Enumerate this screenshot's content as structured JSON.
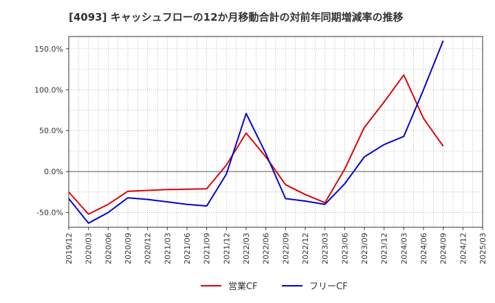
{
  "chart_data": {
    "type": "line",
    "title": "[4093]  キャッシュフローの12か月移動合計の対前年同期増減率の推移",
    "xlabel": "",
    "ylabel": "",
    "ylim": [
      -68,
      165
    ],
    "y_ticks": [
      {
        "value": 150,
        "label": "150.0%"
      },
      {
        "value": 100,
        "label": "100.0%"
      },
      {
        "value": 50,
        "label": "50.0%"
      },
      {
        "value": 0,
        "label": "0.0%"
      },
      {
        "value": -50,
        "label": "-50.0%"
      }
    ],
    "categories": [
      "2019/12",
      "2020/03",
      "2020/06",
      "2020/09",
      "2020/12",
      "2021/03",
      "2021/06",
      "2021/09",
      "2021/12",
      "2022/03",
      "2022/06",
      "2022/09",
      "2022/12",
      "2023/03",
      "2023/06",
      "2023/09",
      "2023/12",
      "2024/03",
      "2024/06",
      "2024/09",
      "2024/12",
      "2025/03"
    ],
    "series": [
      {
        "name": "営業CF",
        "color": "#dd0000",
        "values": [
          -25,
          -52,
          -40,
          -24,
          -23,
          -22,
          -21.5,
          -21,
          8,
          47,
          18,
          -16,
          -28,
          -38,
          3,
          54,
          85,
          118,
          65,
          31,
          null,
          null
        ]
      },
      {
        "name": "フリーCF",
        "color": "#0000cc",
        "values": [
          -33,
          -63,
          -50,
          -32,
          -34,
          -37,
          -40,
          -42,
          -3,
          71,
          22,
          -33,
          -36,
          -40,
          -15,
          18,
          33,
          43,
          100,
          160,
          null,
          null
        ]
      }
    ],
    "legend": {
      "position": "bottom-center",
      "entries": [
        "営業CF",
        "フリーCF"
      ]
    },
    "grid": true
  }
}
